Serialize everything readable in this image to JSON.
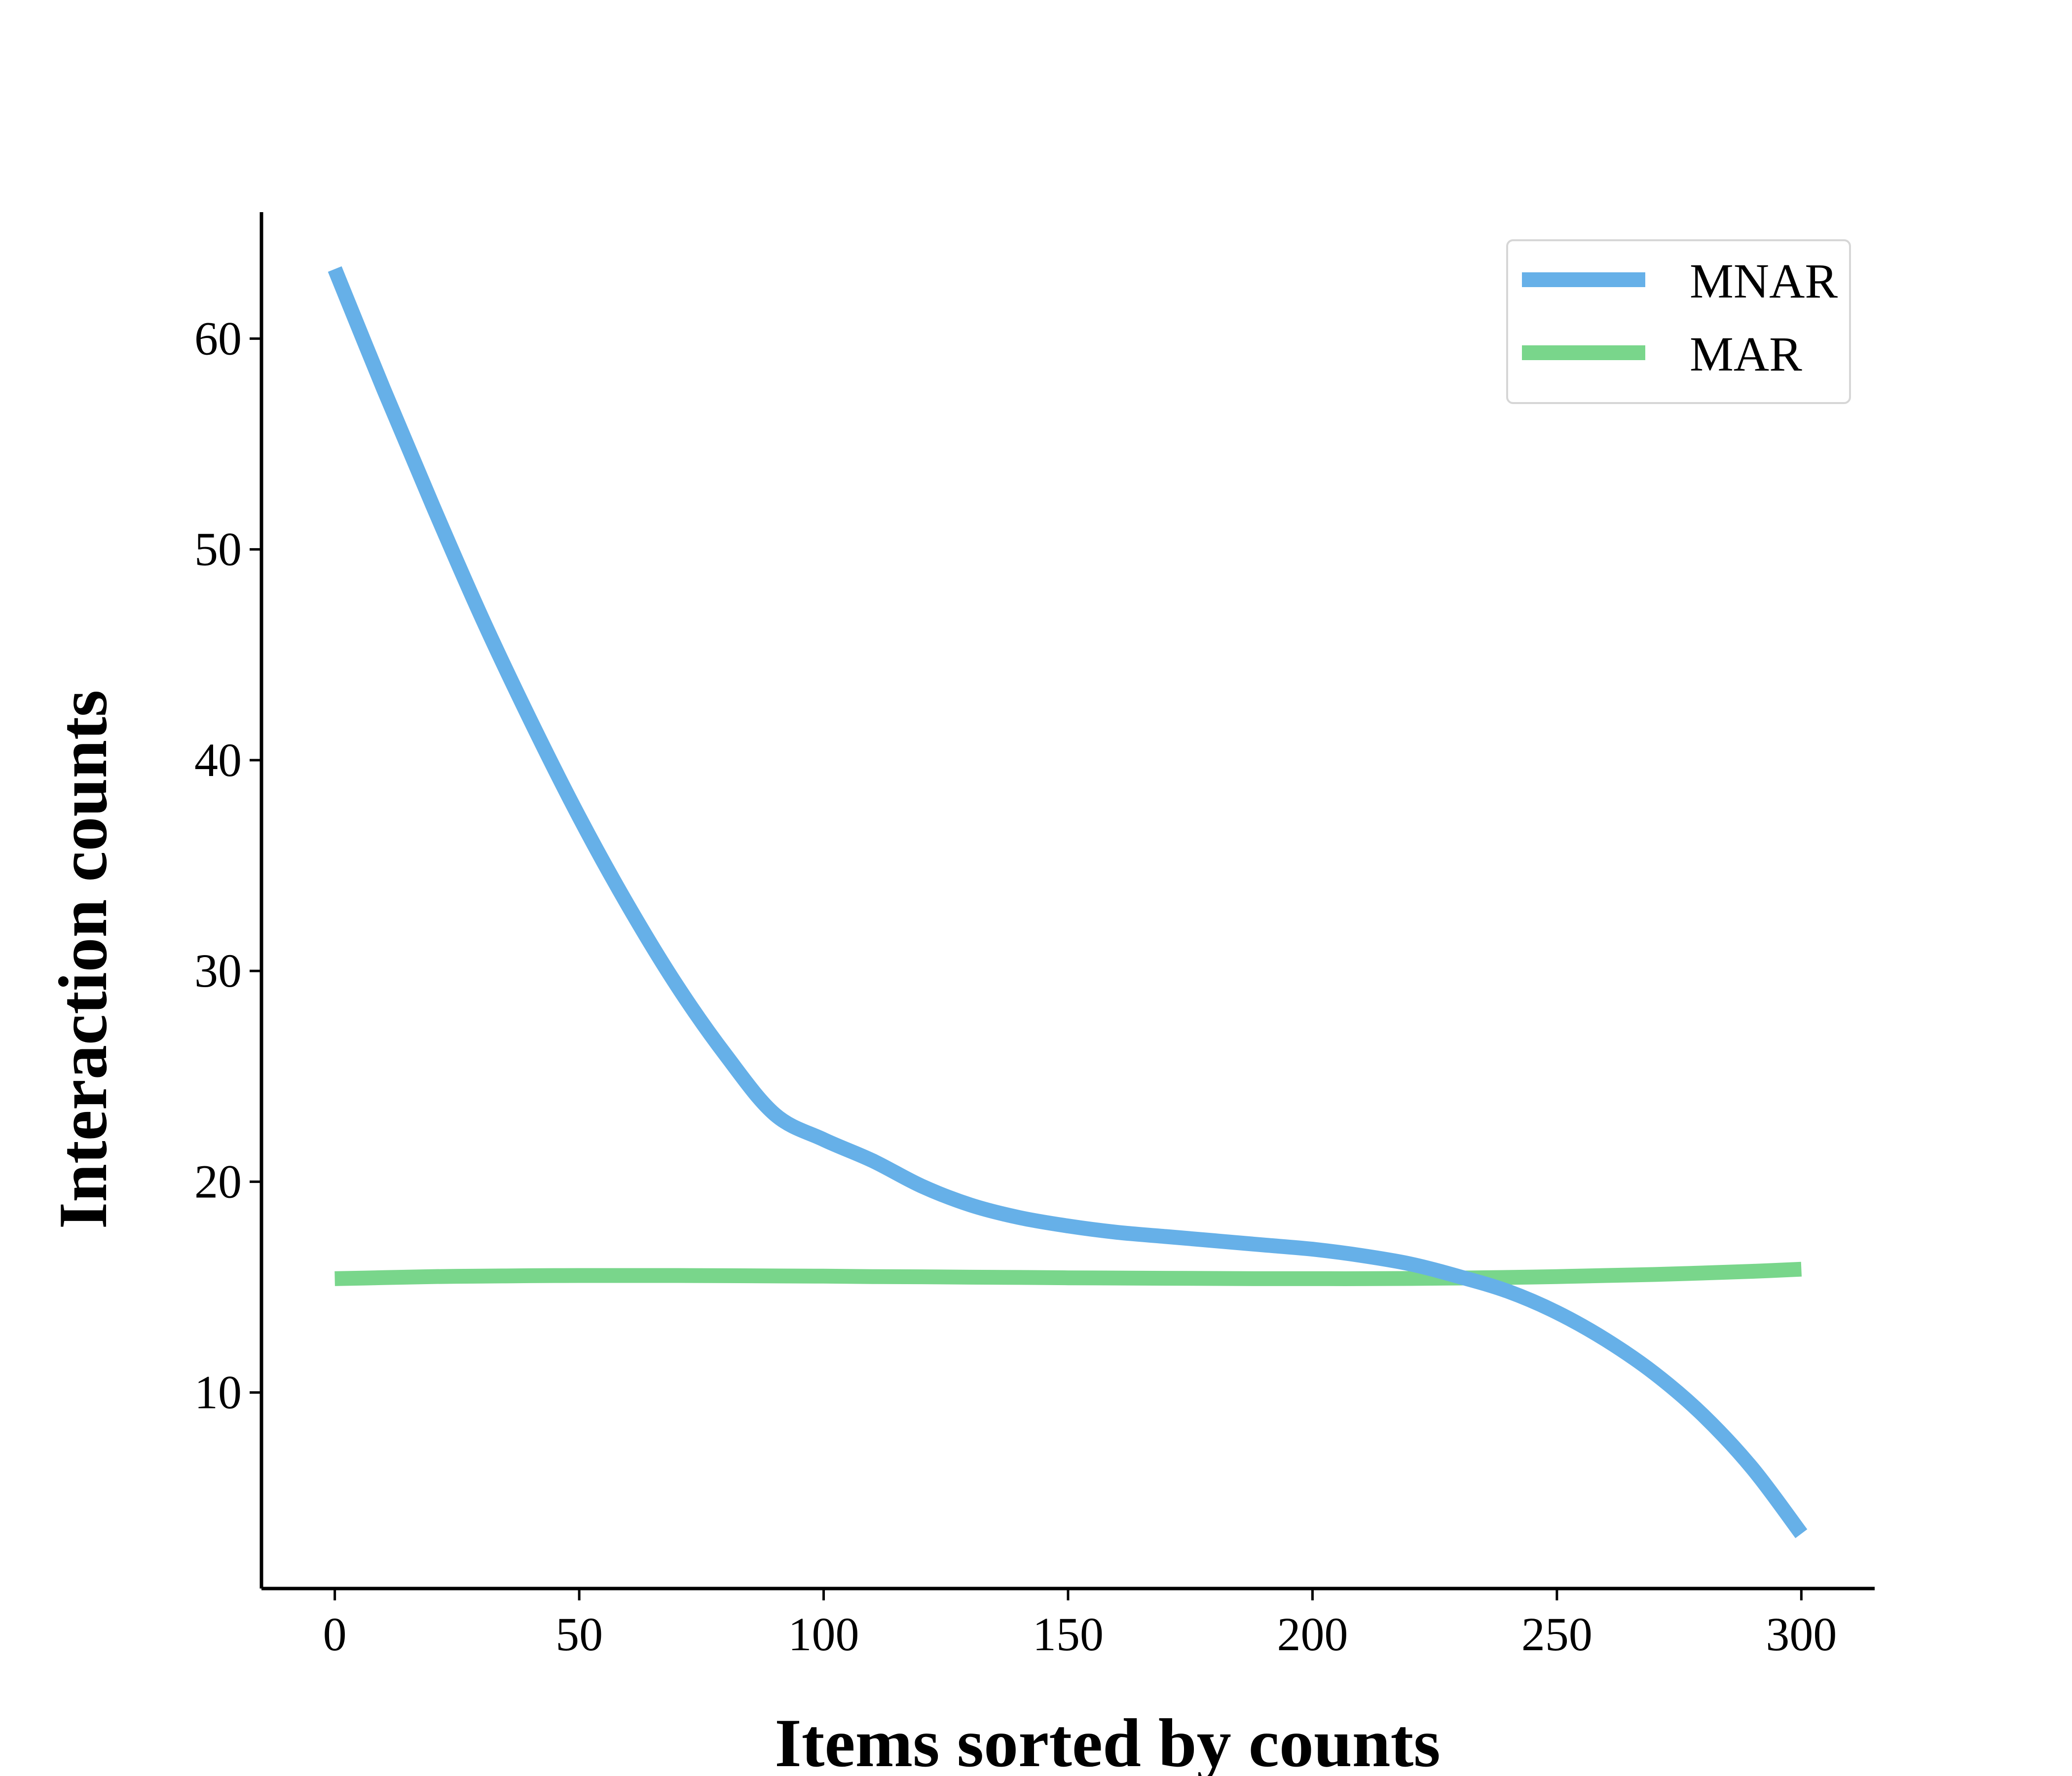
{
  "chart_data": {
    "type": "line",
    "xlabel": "Items sorted by counts",
    "ylabel": "Interaction counts",
    "xlim": [
      -15,
      315
    ],
    "ylim": [
      0.7,
      66
    ],
    "x_ticks": [
      0,
      50,
      100,
      150,
      200,
      250,
      300
    ],
    "y_ticks": [
      10,
      20,
      30,
      40,
      50,
      60
    ],
    "grid": false,
    "legend_position": "top-right",
    "x": [
      0,
      10,
      20,
      30,
      40,
      50,
      60,
      70,
      80,
      90,
      100,
      110,
      120,
      130,
      140,
      150,
      160,
      170,
      180,
      190,
      200,
      210,
      220,
      230,
      240,
      250,
      260,
      270,
      280,
      290,
      300
    ],
    "series": [
      {
        "name": "MNAR",
        "color": "#66b0e8",
        "values": [
          63.3,
          57.6,
          52.1,
          46.8,
          41.9,
          37.3,
          33.1,
          29.3,
          26.0,
          23.2,
          22.0,
          21.0,
          19.8,
          18.9,
          18.3,
          17.9,
          17.6,
          17.4,
          17.2,
          17.0,
          16.8,
          16.5,
          16.1,
          15.5,
          14.8,
          13.8,
          12.5,
          10.9,
          8.9,
          6.4,
          3.3
        ]
      },
      {
        "name": "MAR",
        "color": "#79d68b",
        "values": [
          15.4,
          15.45,
          15.5,
          15.52,
          15.54,
          15.55,
          15.55,
          15.55,
          15.54,
          15.53,
          15.52,
          15.5,
          15.49,
          15.47,
          15.46,
          15.44,
          15.43,
          15.42,
          15.41,
          15.4,
          15.4,
          15.4,
          15.41,
          15.43,
          15.46,
          15.5,
          15.55,
          15.6,
          15.67,
          15.75,
          15.85
        ]
      }
    ]
  }
}
